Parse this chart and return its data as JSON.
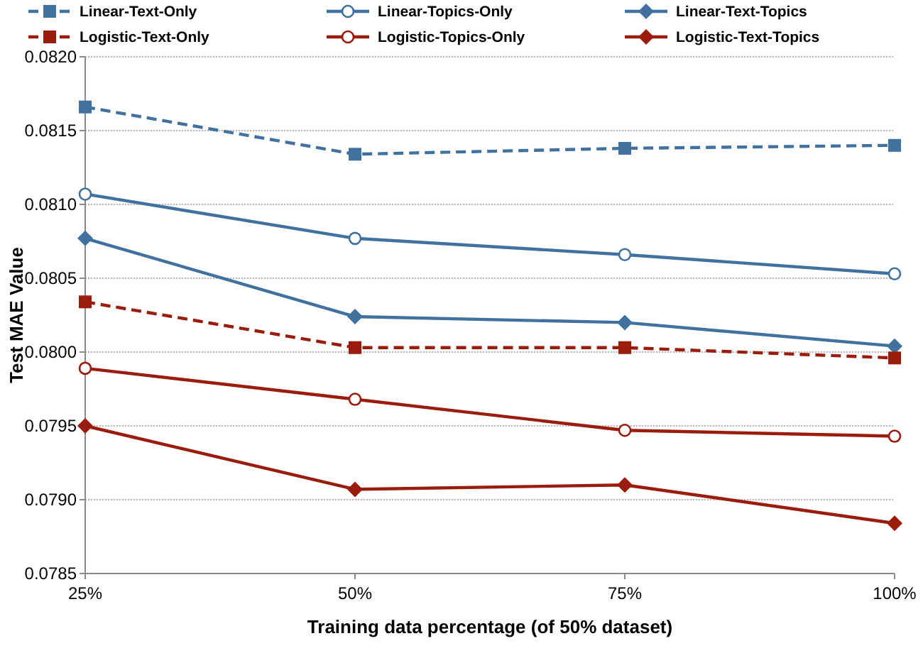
{
  "chart_data": {
    "type": "line",
    "xlabel": "Training data percentage (of 50% dataset)",
    "ylabel": "Test MAE Value",
    "categories": [
      "25%",
      "50%",
      "75%",
      "100%"
    ],
    "series": [
      {
        "name": "Linear-Text-Only",
        "color": "#41729f",
        "marker": "square",
        "line_style": "dashed",
        "values": [
          0.08166,
          0.08134,
          0.08138,
          0.0814
        ]
      },
      {
        "name": "Linear-Topics-Only",
        "color": "#41729f",
        "marker": "circle",
        "line_style": "solid",
        "values": [
          0.08107,
          0.08077,
          0.08066,
          0.08053
        ]
      },
      {
        "name": "Linear-Text-Topics",
        "color": "#41729f",
        "marker": "diamond",
        "line_style": "solid",
        "values": [
          0.08077,
          0.08024,
          0.0802,
          0.08004
        ]
      },
      {
        "name": "Logistic-Text-Only",
        "color": "#9b1c0c",
        "marker": "square",
        "line_style": "dashed",
        "values": [
          0.08034,
          0.08003,
          0.08003,
          0.07996
        ]
      },
      {
        "name": "Logistic-Topics-Only",
        "color": "#9b1c0c",
        "marker": "circle",
        "line_style": "solid",
        "values": [
          0.07989,
          0.07968,
          0.07947,
          0.07943
        ]
      },
      {
        "name": "Logistic-Text-Topics",
        "color": "#9b1c0c",
        "marker": "diamond",
        "line_style": "solid",
        "values": [
          0.0795,
          0.07907,
          0.0791,
          0.07884
        ]
      }
    ],
    "ylim": [
      0.0785,
      0.082
    ],
    "yticks": [
      0.0785,
      {
        "value": 0.079,
        "label": "0.0790"
      },
      0.0795,
      {
        "value": 0.08,
        "label": "0.0800"
      },
      0.0805,
      {
        "value": 0.081,
        "label": "0.0810"
      },
      0.0815,
      {
        "value": 0.082,
        "label": "0.0820"
      }
    ],
    "grid": "y",
    "legend": "top"
  }
}
